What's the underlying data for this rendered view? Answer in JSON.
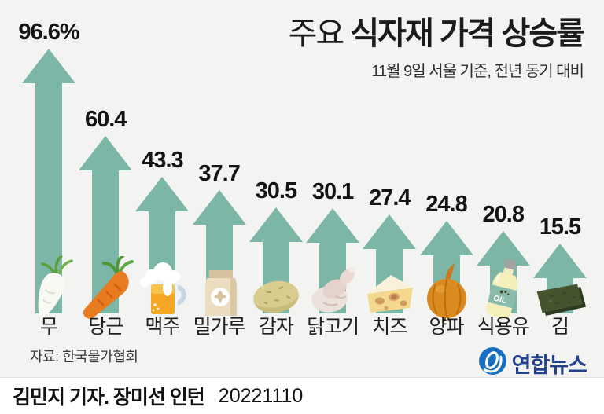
{
  "header": {
    "title_prefix": "주요 ",
    "title_main": "식자재 가격 상승률",
    "subtitle": "11월 9일 서울 기준, 전년 동기 대비"
  },
  "chart_data": {
    "type": "bar",
    "title": "주요 식자재 가격 상승률",
    "subtitle": "11월 9일 서울 기준, 전년 동기 대비",
    "unit": "%",
    "ylim": [
      0,
      100
    ],
    "categories": [
      "무",
      "당근",
      "맥주",
      "밀가루",
      "감자",
      "닭고기",
      "치즈",
      "양파",
      "식용유",
      "김"
    ],
    "values": [
      96.6,
      60.4,
      43.3,
      37.7,
      30.5,
      30.1,
      27.4,
      24.8,
      20.8,
      15.5
    ],
    "value_labels": [
      "96.6%",
      "60.4",
      "43.3",
      "37.7",
      "30.5",
      "30.1",
      "27.4",
      "24.8",
      "20.8",
      "15.5"
    ],
    "icons": [
      "radish-icon",
      "carrot-icon",
      "beer-icon",
      "flour-icon",
      "potato-icon",
      "chicken-icon",
      "cheese-icon",
      "onion-icon",
      "cooking-oil-icon",
      "seaweed-icon"
    ],
    "oil_bottle_label": "OIL",
    "arrow_color": "#7cb6a6"
  },
  "source": {
    "label": "자료: 한국물가협회"
  },
  "logo": {
    "text": "연합뉴스",
    "circle_color": "#1a70c0",
    "text_color": "#24418e"
  },
  "footer": {
    "byline": "김민지 기자. 장미선 인턴",
    "date": "20221110"
  }
}
